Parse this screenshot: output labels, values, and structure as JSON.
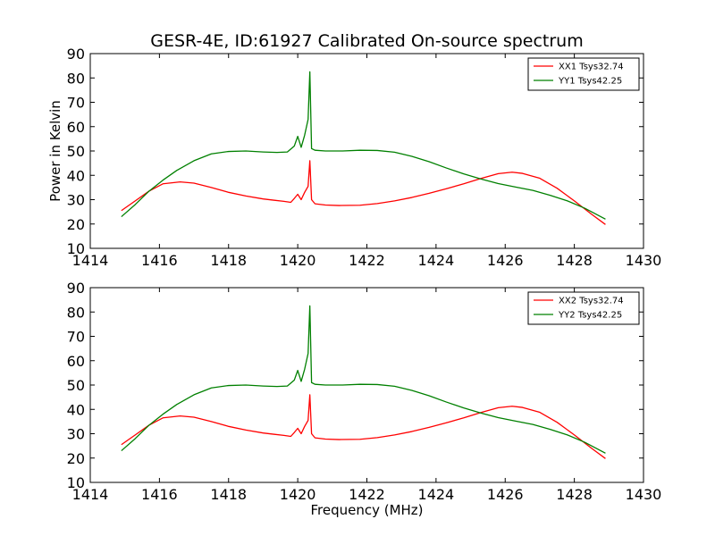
{
  "chart_data": [
    {
      "type": "line",
      "title": "GESR-4E, ID:61927 Calibrated On-source spectrum",
      "xlabel": "",
      "ylabel": "Power in Kelvin",
      "xlim": [
        1414,
        1430
      ],
      "ylim": [
        10,
        90
      ],
      "xticks": [
        "1414",
        "1416",
        "1418",
        "1420",
        "1422",
        "1424",
        "1426",
        "1428",
        "1430"
      ],
      "yticks": [
        "10",
        "20",
        "30",
        "40",
        "50",
        "60",
        "70",
        "80",
        "90"
      ],
      "grid": false,
      "legend_position": "top-right",
      "series": [
        {
          "name": "XX1 Tsys32.74",
          "color": "#ff0000",
          "x": [
            1414.9,
            1415.3,
            1415.7,
            1416.1,
            1416.6,
            1417.0,
            1417.5,
            1418.0,
            1418.5,
            1419.0,
            1419.3,
            1419.6,
            1419.8,
            1419.9,
            1420.0,
            1420.1,
            1420.2,
            1420.3,
            1420.35,
            1420.4,
            1420.5,
            1420.8,
            1421.2,
            1421.8,
            1422.3,
            1422.8,
            1423.3,
            1423.8,
            1424.3,
            1424.8,
            1425.3,
            1425.8,
            1426.2,
            1426.5,
            1427.0,
            1427.5,
            1428.0,
            1428.5,
            1428.9
          ],
          "values": [
            25.5,
            29.5,
            33.5,
            36.5,
            37.3,
            36.8,
            35.0,
            33.0,
            31.5,
            30.3,
            29.8,
            29.3,
            28.9,
            30.5,
            32.2,
            30.0,
            33.0,
            35.5,
            46.0,
            30.0,
            28.3,
            27.8,
            27.6,
            27.7,
            28.4,
            29.5,
            30.9,
            32.6,
            34.5,
            36.5,
            38.7,
            40.7,
            41.3,
            40.8,
            38.8,
            34.7,
            29.5,
            24.0,
            19.8
          ]
        },
        {
          "name": "YY1 Tsys42.25",
          "color": "#008000",
          "x": [
            1414.9,
            1415.3,
            1415.7,
            1416.1,
            1416.5,
            1417.0,
            1417.5,
            1418.0,
            1418.5,
            1419.0,
            1419.4,
            1419.7,
            1419.9,
            1420.0,
            1420.1,
            1420.2,
            1420.3,
            1420.35,
            1420.4,
            1420.5,
            1420.8,
            1421.3,
            1421.8,
            1422.3,
            1422.8,
            1423.3,
            1423.8,
            1424.3,
            1424.8,
            1425.3,
            1425.8,
            1426.3,
            1426.8,
            1427.3,
            1427.8,
            1428.3,
            1428.9
          ],
          "values": [
            23.0,
            28.0,
            33.5,
            38.0,
            42.0,
            46.0,
            48.8,
            49.8,
            50.0,
            49.6,
            49.4,
            49.6,
            52.0,
            56.0,
            51.5,
            56.5,
            63.0,
            82.5,
            51.0,
            50.3,
            50.0,
            50.0,
            50.3,
            50.2,
            49.5,
            47.8,
            45.6,
            43.0,
            40.6,
            38.5,
            36.6,
            35.2,
            33.8,
            31.8,
            29.5,
            26.5,
            22.0
          ]
        }
      ]
    },
    {
      "type": "line",
      "title": "",
      "xlabel": "Frequency (MHz)",
      "ylabel": "",
      "xlim": [
        1414,
        1430
      ],
      "ylim": [
        10,
        90
      ],
      "xticks": [
        "1414",
        "1416",
        "1418",
        "1420",
        "1422",
        "1424",
        "1426",
        "1428",
        "1430"
      ],
      "yticks": [
        "10",
        "20",
        "30",
        "40",
        "50",
        "60",
        "70",
        "80",
        "90"
      ],
      "grid": false,
      "legend_position": "top-right",
      "series": [
        {
          "name": "XX2 Tsys32.74",
          "color": "#ff0000",
          "x": [
            1414.9,
            1415.3,
            1415.7,
            1416.1,
            1416.6,
            1417.0,
            1417.5,
            1418.0,
            1418.5,
            1419.0,
            1419.3,
            1419.6,
            1419.8,
            1419.9,
            1420.0,
            1420.1,
            1420.2,
            1420.3,
            1420.35,
            1420.4,
            1420.5,
            1420.8,
            1421.2,
            1421.8,
            1422.3,
            1422.8,
            1423.3,
            1423.8,
            1424.3,
            1424.8,
            1425.3,
            1425.8,
            1426.2,
            1426.5,
            1427.0,
            1427.5,
            1428.0,
            1428.5,
            1428.9
          ],
          "values": [
            25.5,
            29.5,
            33.5,
            36.5,
            37.3,
            36.8,
            35.0,
            33.0,
            31.5,
            30.3,
            29.8,
            29.3,
            28.9,
            30.5,
            32.2,
            30.0,
            33.0,
            35.5,
            46.0,
            30.0,
            28.3,
            27.8,
            27.6,
            27.7,
            28.4,
            29.5,
            30.9,
            32.6,
            34.5,
            36.5,
            38.7,
            40.7,
            41.3,
            40.8,
            38.8,
            34.7,
            29.5,
            24.0,
            19.8
          ]
        },
        {
          "name": "YY2 Tsys42.25",
          "color": "#008000",
          "x": [
            1414.9,
            1415.3,
            1415.7,
            1416.1,
            1416.5,
            1417.0,
            1417.5,
            1418.0,
            1418.5,
            1419.0,
            1419.4,
            1419.7,
            1419.9,
            1420.0,
            1420.1,
            1420.2,
            1420.3,
            1420.35,
            1420.4,
            1420.5,
            1420.8,
            1421.3,
            1421.8,
            1422.3,
            1422.8,
            1423.3,
            1423.8,
            1424.3,
            1424.8,
            1425.3,
            1425.8,
            1426.3,
            1426.8,
            1427.3,
            1427.8,
            1428.3,
            1428.9
          ],
          "values": [
            23.0,
            28.0,
            33.5,
            38.0,
            42.0,
            46.0,
            48.8,
            49.8,
            50.0,
            49.6,
            49.4,
            49.6,
            52.0,
            56.0,
            51.5,
            56.5,
            63.0,
            82.5,
            51.0,
            50.3,
            50.0,
            50.0,
            50.3,
            50.2,
            49.5,
            47.8,
            45.6,
            43.0,
            40.6,
            38.5,
            36.6,
            35.2,
            33.8,
            31.8,
            29.5,
            26.5,
            22.0
          ]
        }
      ]
    }
  ]
}
